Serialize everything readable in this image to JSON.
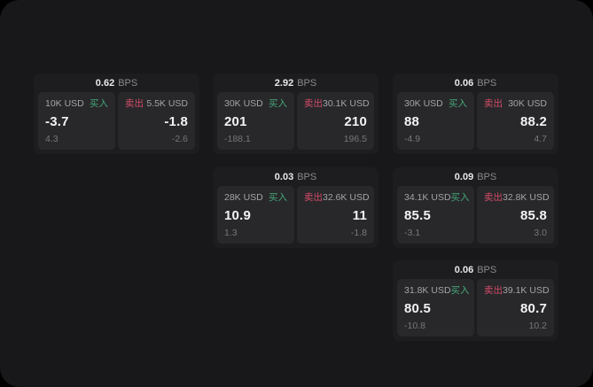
{
  "colors": {
    "surface": "#18181a",
    "card": "#1d1d1f",
    "panel": "#28282b",
    "buy": "#46a877",
    "sell": "#d34b66"
  },
  "labels": {
    "bps": "BPS",
    "buy": "买入",
    "sell": "卖出"
  },
  "cards": [
    {
      "bps": "0.62",
      "buy": {
        "amount": "10K USD",
        "price": "-3.7",
        "delta": "4.3"
      },
      "sell": {
        "amount": "5.5K USD",
        "price": "-1.8",
        "delta": "-2.6"
      }
    },
    {
      "bps": "2.92",
      "buy": {
        "amount": "30K USD",
        "price": "201",
        "delta": "-188.1"
      },
      "sell": {
        "amount": "30.1K USD",
        "price": "210",
        "delta": "196.5"
      }
    },
    {
      "bps": "0.06",
      "buy": {
        "amount": "30K USD",
        "price": "88",
        "delta": "-4.9"
      },
      "sell": {
        "amount": "30K USD",
        "price": "88.2",
        "delta": "4.7"
      }
    },
    {
      "bps": "0.03",
      "buy": {
        "amount": "28K USD",
        "price": "10.9",
        "delta": "1.3"
      },
      "sell": {
        "amount": "32.6K USD",
        "price": "11",
        "delta": "-1.8"
      }
    },
    {
      "bps": "0.09",
      "buy": {
        "amount": "34.1K USD",
        "price": "85.5",
        "delta": "-3.1"
      },
      "sell": {
        "amount": "32.8K USD",
        "price": "85.8",
        "delta": "3.0"
      }
    },
    {
      "bps": "0.06",
      "buy": {
        "amount": "31.8K USD",
        "price": "80.5",
        "delta": "-10.8"
      },
      "sell": {
        "amount": "39.1K USD",
        "price": "80.7",
        "delta": "10.2"
      }
    }
  ]
}
